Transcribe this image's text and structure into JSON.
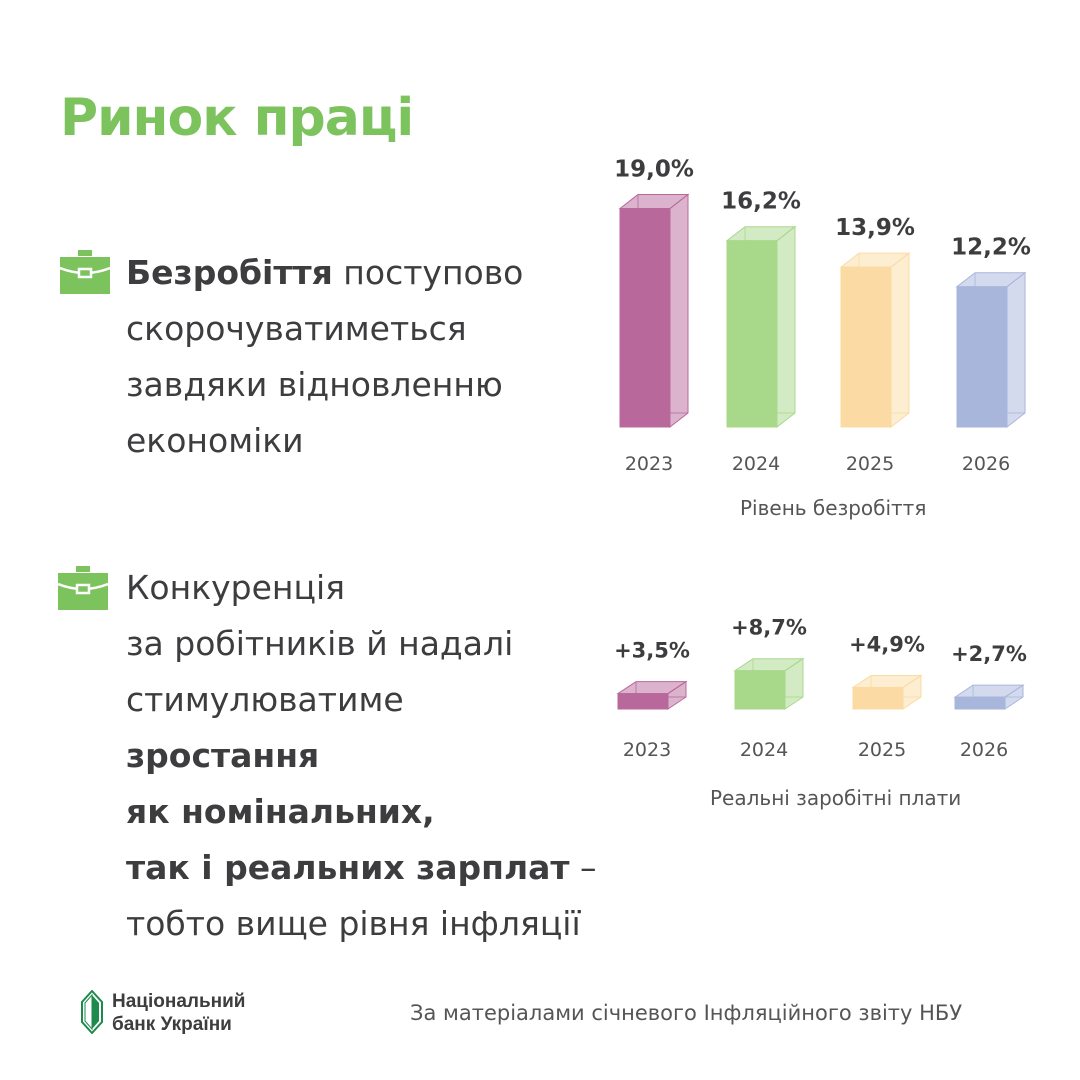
{
  "title": "Ринок праці",
  "section1": {
    "bold": "Безробіття",
    "rest1": " поступово",
    "line2": "скорочуватиметься",
    "line3": "завдяки відновленню",
    "line4": "економіки"
  },
  "section2": {
    "line1": "Конкуренція",
    "line2": "за робітників й надалі",
    "line3": "стимулюватиме",
    "bold1": "зростання",
    "bold2": "як номінальних,",
    "bold3": "так і реальних зарплат",
    "dash": " –",
    "line7": "тобто вище рівня інфляції"
  },
  "icons": {
    "section": "briefcase-icon",
    "logo": "nbu-logo"
  },
  "colors": {
    "title": "#7cc35e",
    "series": [
      "#b9689c",
      "#a8d88a",
      "#fbdba3",
      "#a9b6dc"
    ]
  },
  "chart_data": [
    {
      "type": "bar",
      "title": "Рівень безробіття",
      "categories": [
        "2023",
        "2024",
        "2025",
        "2026"
      ],
      "values": [
        19.0,
        16.2,
        13.9,
        12.2
      ],
      "data_labels": [
        "19,0%",
        "16,2%",
        "13,9%",
        "12,2%"
      ],
      "style": "3d",
      "grid": false
    },
    {
      "type": "bar",
      "title": "Реальні заробітні плати",
      "categories": [
        "2023",
        "2024",
        "2025",
        "2026"
      ],
      "values": [
        3.5,
        8.7,
        4.9,
        2.7
      ],
      "data_labels": [
        "+3,5%",
        "+8,7%",
        "+4,9%",
        "+2,7%"
      ],
      "style": "3d",
      "grid": false
    }
  ],
  "footer": {
    "logo_line1": "Національний",
    "logo_line2": "банк України",
    "source": "За матеріалами січневого Інфляційного звіту НБУ"
  }
}
